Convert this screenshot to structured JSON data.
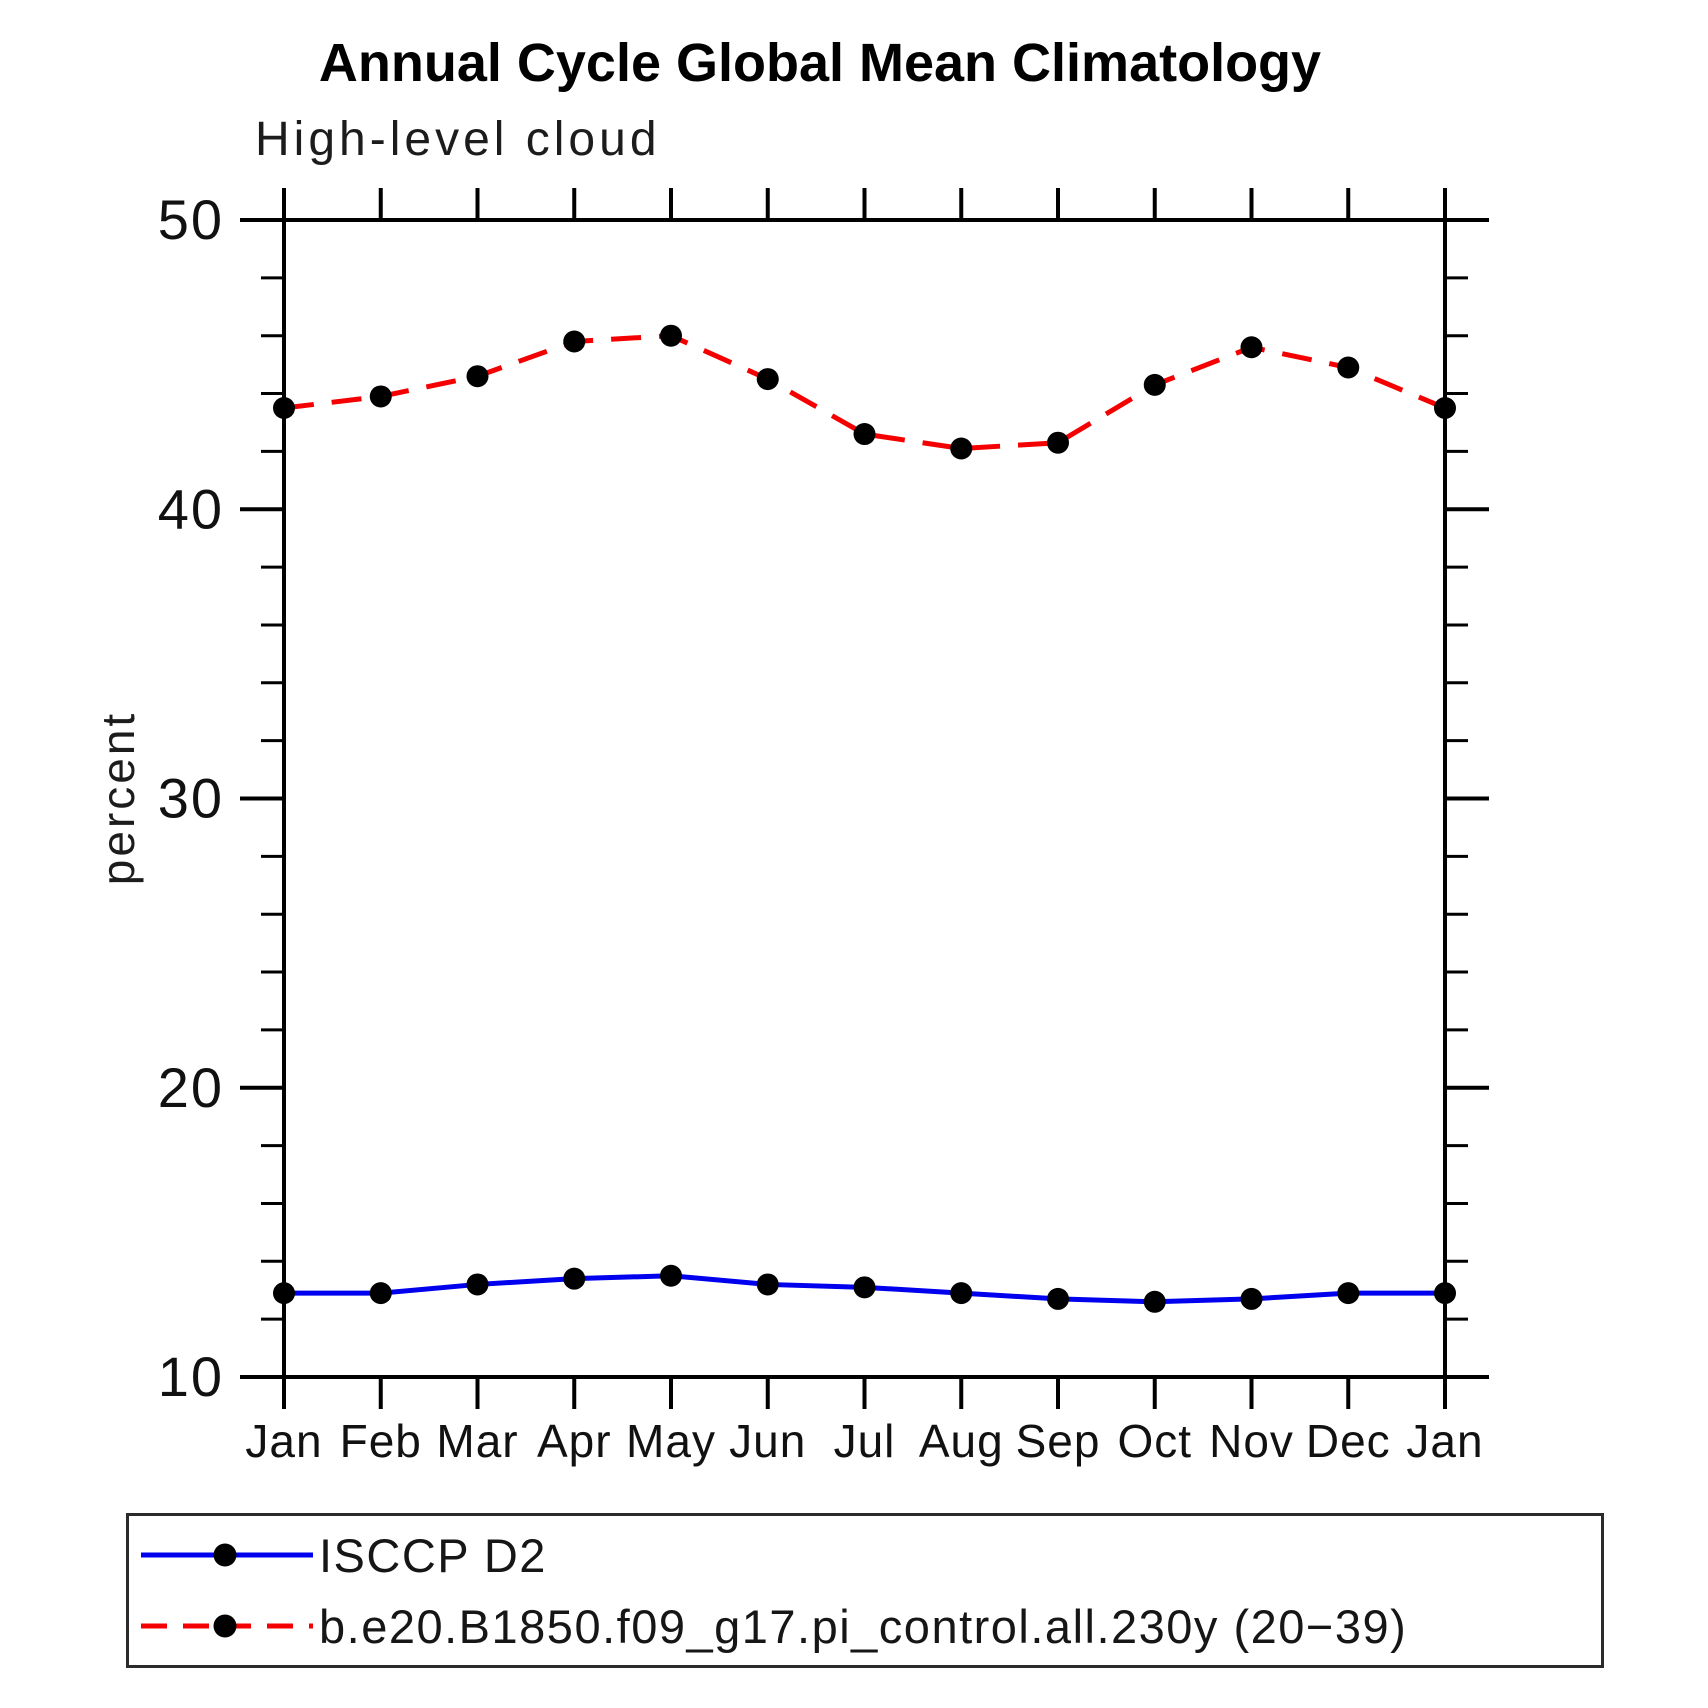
{
  "chart_data": {
    "type": "line",
    "title": "Annual Cycle Global Mean Climatology",
    "subtitle": "High-level cloud",
    "ylabel": "percent",
    "xlabel": "",
    "ylim": [
      10,
      50
    ],
    "y_major_ticks": [
      10,
      20,
      30,
      40,
      50
    ],
    "y_minor_step": 2,
    "grid": false,
    "legend_position": "bottom",
    "categories": [
      "Jan",
      "Feb",
      "Mar",
      "Apr",
      "May",
      "Jun",
      "Jul",
      "Aug",
      "Sep",
      "Oct",
      "Nov",
      "Dec",
      "Jan"
    ],
    "series": [
      {
        "name": "ISCCP D2",
        "color": "#0000ee",
        "style": "solid",
        "marker": "circle",
        "marker_color": "#000000",
        "values": [
          12.9,
          12.9,
          13.2,
          13.4,
          13.5,
          13.2,
          13.1,
          12.9,
          12.7,
          12.6,
          12.7,
          12.9,
          12.9
        ]
      },
      {
        "name": "b.e20.B1850.f09_g17.pi_control.all.230y (20−39)",
        "color": "#f50000",
        "style": "dashed",
        "marker": "circle",
        "marker_color": "#000000",
        "values": [
          43.5,
          43.9,
          44.6,
          45.8,
          46.0,
          44.5,
          42.6,
          42.1,
          42.3,
          44.3,
          45.6,
          44.9,
          43.5
        ]
      }
    ]
  }
}
